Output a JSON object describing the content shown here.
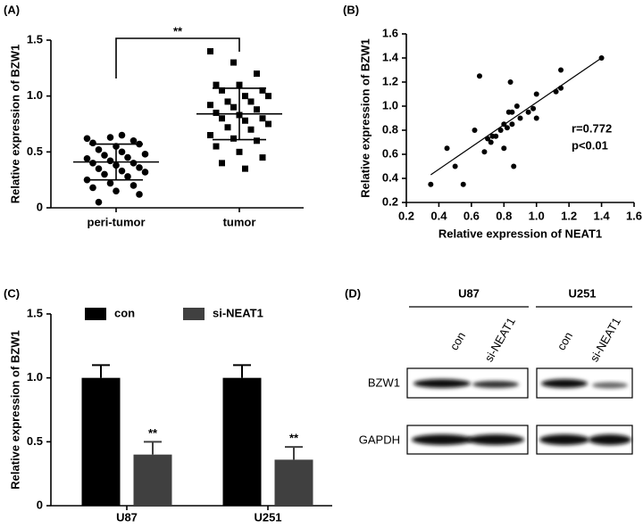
{
  "chart_data": [
    {
      "type": "dotplot",
      "panel_label": "(A)",
      "ylabel": "Relative expression of BZW1",
      "categories": [
        "peri-tumor",
        "tumor"
      ],
      "points": [
        [
          0.62,
          0.63,
          0.6,
          0.58,
          0.55,
          0.57,
          0.52,
          0.5,
          0.48,
          0.47,
          0.45,
          0.44,
          0.42,
          0.4,
          0.4,
          0.38,
          0.36,
          0.35,
          0.33,
          0.32,
          0.3,
          0.28,
          0.25,
          0.22,
          0.2,
          0.18,
          0.15,
          0.12,
          0.05,
          0.65
        ],
        [
          1.4,
          1.3,
          1.2,
          1.1,
          1.1,
          1.05,
          1.05,
          1.0,
          1.0,
          0.95,
          0.95,
          0.92,
          0.9,
          0.88,
          0.85,
          0.83,
          0.8,
          0.8,
          0.78,
          0.75,
          0.72,
          0.7,
          0.65,
          0.62,
          0.6,
          0.55,
          0.5,
          0.45,
          0.4,
          0.35
        ]
      ],
      "means": [
        0.41,
        0.84
      ],
      "sds": [
        0.16,
        0.23
      ],
      "color": "#000000",
      "significance": "**",
      "ylim": [
        0,
        1.5
      ],
      "yticks": [
        0,
        0.5,
        {
          "value": 1,
          "label": "1.0"
        },
        1.5
      ]
    },
    {
      "type": "scatter",
      "panel_label": "(B)",
      "xlabel": "Relative expression of NEAT1",
      "ylabel": "Relative expression of BZW1",
      "x": [
        0.35,
        0.45,
        0.5,
        0.55,
        0.62,
        0.65,
        0.68,
        0.7,
        0.72,
        0.73,
        0.75,
        0.78,
        0.8,
        0.8,
        0.82,
        0.83,
        0.84,
        0.85,
        0.85,
        0.86,
        0.88,
        0.9,
        0.95,
        0.98,
        1.0,
        1.0,
        1.12,
        1.15,
        1.15,
        1.4
      ],
      "y": [
        0.35,
        0.65,
        0.5,
        0.35,
        0.8,
        1.25,
        0.62,
        0.73,
        0.7,
        0.75,
        0.75,
        0.8,
        0.65,
        0.85,
        0.82,
        0.95,
        1.2,
        0.85,
        0.95,
        0.5,
        1.0,
        0.9,
        0.95,
        0.98,
        0.9,
        1.1,
        1.12,
        1.3,
        1.15,
        1.4
      ],
      "fit_line": {
        "x": [
          0.35,
          1.4
        ],
        "y": [
          0.43,
          1.4
        ]
      },
      "color": "#000000",
      "annotations": [
        "r=0.772",
        "p<0.01"
      ],
      "xlim": [
        0.2,
        1.6
      ],
      "xticks": [
        0.2,
        0.4,
        0.6,
        0.8,
        {
          "value": 1,
          "label": "1.0"
        },
        1.2,
        1.4,
        1.6
      ],
      "ylim": [
        0.2,
        1.6
      ],
      "yticks": [
        0.2,
        0.4,
        0.6,
        0.8,
        {
          "value": 1,
          "label": "1.0"
        },
        1.2,
        1.4,
        1.6
      ]
    },
    {
      "type": "bar",
      "panel_label": "(C)",
      "ylabel": "Relative expression of BZW1",
      "categories": [
        "U87",
        "U251"
      ],
      "series": [
        {
          "name": "con",
          "color": "#000000",
          "values": [
            1.0,
            1.0
          ],
          "errors": [
            0.1,
            0.1
          ]
        },
        {
          "name": "si-NEAT1",
          "color": "#404040",
          "values": [
            0.4,
            0.36
          ],
          "errors": [
            0.1,
            0.1
          ],
          "annotations": [
            "**",
            "**"
          ]
        }
      ],
      "ylim": [
        0,
        1.5
      ],
      "yticks": [
        0,
        0.5,
        {
          "value": 1,
          "label": "1.0"
        },
        1.5
      ]
    }
  ],
  "blot": {
    "panel_label": "(D)",
    "cell_lines": [
      "U87",
      "U251"
    ],
    "lanes": [
      "con",
      "si-NEAT1"
    ],
    "proteins": [
      "BZW1",
      "GAPDH"
    ]
  }
}
